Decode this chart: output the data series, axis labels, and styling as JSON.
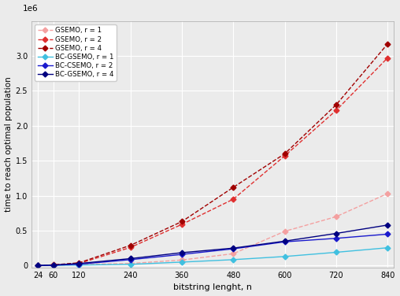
{
  "x": [
    24,
    60,
    120,
    240,
    360,
    480,
    600,
    720,
    840
  ],
  "gsemo_r1": [
    2000,
    5000,
    15000,
    30000,
    80000,
    170000,
    490000,
    700000,
    1030000
  ],
  "gsemo_r2": [
    2000,
    8000,
    30000,
    260000,
    590000,
    950000,
    1570000,
    2220000,
    2970000
  ],
  "gsemo_r4": [
    3000,
    10000,
    40000,
    290000,
    630000,
    1120000,
    1600000,
    2300000,
    3170000
  ],
  "bc_gsemo_r1": [
    1000,
    3000,
    8000,
    18000,
    50000,
    85000,
    130000,
    190000,
    255000
  ],
  "bc_gsemo_r2": [
    1000,
    5000,
    20000,
    85000,
    160000,
    240000,
    340000,
    390000,
    450000
  ],
  "bc_gsemo_r4": [
    2000,
    8000,
    30000,
    100000,
    185000,
    250000,
    350000,
    460000,
    580000
  ],
  "colors": {
    "gsemo_r1": "#f4a0a0",
    "gsemo_r2": "#e03030",
    "gsemo_r4": "#a00000",
    "bc_gsemo_r1": "#40c0e0",
    "bc_gsemo_r2": "#1a1acd",
    "bc_gsemo_r4": "#000080"
  },
  "legend_labels": [
    "GSEMO, r = 1",
    "GSEMO, r = 2",
    "GSEMO, r = 4",
    "BC-GSEMO, r = 1",
    "BC-CSEMO, r = 2",
    "BC-GSEMO, r = 4"
  ],
  "xlabel": "bitstring lenght, n",
  "ylabel": "time to reach optimal population",
  "ytop": 3500000,
  "xticks": [
    24,
    60,
    120,
    240,
    360,
    480,
    600,
    720,
    840
  ],
  "yticks": [
    0.0,
    0.5,
    1.0,
    1.5,
    2.0,
    2.5,
    3.0
  ],
  "background_color": "#ebebeb",
  "grid_color": "#ffffff"
}
